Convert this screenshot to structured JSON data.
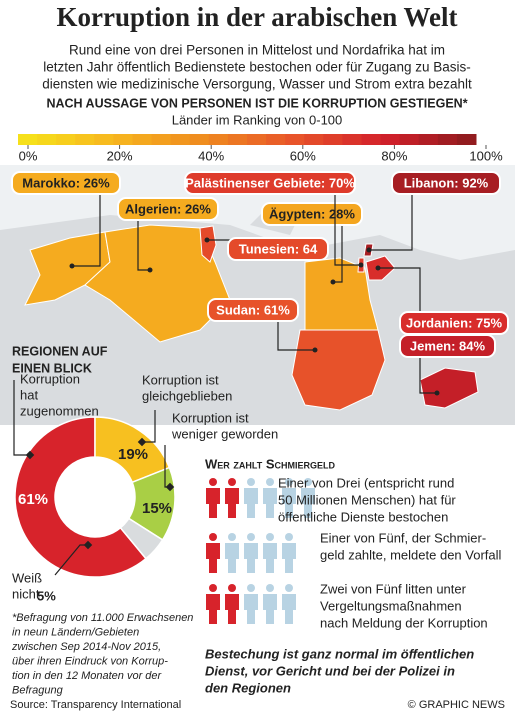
{
  "header": {
    "title": "Korruption in der arabischen Welt",
    "subtitle": [
      "Rund eine von drei Personen in Mittelost und Nordafrika hat im",
      "letzten Jahr öffentlich Bedienstete bestochen oder für Zugang zu Basis-",
      "diensten wie medizinische Versorgung, Wasser und Strom extra bezahlt"
    ],
    "map_heading": "NACH AUSSAGE VON PERSONEN IST DIE KORRUPTION GESTIEGEN*",
    "map_subheading": "Länder im Ranking von 0-100"
  },
  "scale": {
    "lim": [
      0,
      100
    ],
    "colors": [
      "#f6e51a",
      "#f7b81f",
      "#ef8c1f",
      "#e8552a",
      "#d3202b",
      "#8a1c1e"
    ],
    "ticks": [
      {
        "value": 0,
        "label": "0%"
      },
      {
        "value": 20,
        "label": "20%"
      },
      {
        "value": 40,
        "label": "40%"
      },
      {
        "value": 60,
        "label": "60%"
      },
      {
        "value": 80,
        "label": "80%"
      },
      {
        "value": 100,
        "label": "100%"
      }
    ]
  },
  "countries": [
    {
      "label": "Marokko: 26%",
      "value": 26
    },
    {
      "label": "Algerien: 26%",
      "value": 26
    },
    {
      "label": "Tunesien: 64",
      "value": 64
    },
    {
      "label": "Ägypten: 28%",
      "value": 28
    },
    {
      "label": "Palästinenser Gebiete: 70%",
      "value": 70
    },
    {
      "label": "Libanon: 92%",
      "value": 92
    },
    {
      "label": "Sudan: 61%",
      "value": 61
    },
    {
      "label": "Jordanien: 75%",
      "value": 75
    },
    {
      "label": "Jemen: 84%",
      "value": 84
    }
  ],
  "chart_data": {
    "type": "donut",
    "title": [
      "REGIONEN AUF",
      "EINEN BLICK"
    ],
    "categories": [
      [
        "Korruption",
        "hat",
        "zugenommen"
      ],
      [
        "Korruption ist",
        "gleichgeblieben"
      ],
      [
        "Korruption ist",
        "weniger geworden"
      ],
      [
        "Weiß",
        "nicht"
      ]
    ],
    "values": [
      61,
      19,
      15,
      5
    ],
    "value_labels": [
      "61%",
      "19%",
      "15%",
      "5%"
    ],
    "colors": [
      "#d7232b",
      "#f7c020",
      "#a9cf45",
      "#d9dcde"
    ]
  },
  "footnote": [
    "*Befragung von 11.000 Erwachsenen",
    "in neun Ländern/Gebieten",
    "zwischen Sep 2014-Nov 2015,",
    "über ihren Eindruck von Korrup-",
    "tion in den 12 Monaten vor der",
    "Befragung"
  ],
  "bribery": {
    "title": "Wer zahlt Schmiergeld",
    "highlight_color": "#d7232b",
    "base_color": "#b8d3e3",
    "rows": [
      {
        "text": [
          "Einer von Drei (entspricht rund",
          "50 Millionen Menschen) hat für",
          "öffentliche Dienste bestochen"
        ],
        "highlighted": 2,
        "total": 6
      },
      {
        "text": [
          "Einer von Fünf, der Schmier-",
          "geld zahlte, meldete den Vorfall"
        ],
        "highlighted": 1,
        "total": 5
      },
      {
        "text": [
          "Zwei von Fünf litten unter",
          "Vergeltungsmaßnahmen",
          "nach Meldung der Korruption"
        ],
        "highlighted": 2,
        "total": 5
      }
    ],
    "note": [
      "Bestechung ist ganz normal im öffentlichen",
      "Dienst, vor Gericht und bei  der Polizei in",
      "den Regionen"
    ]
  },
  "footer": {
    "source": "Source: Transparency International",
    "credit": "© GRAPHIC NEWS"
  }
}
